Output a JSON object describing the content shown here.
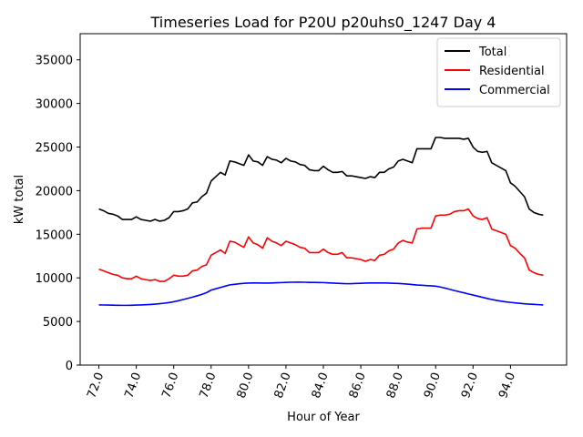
{
  "chart_data": {
    "type": "line",
    "title": "Timeseries Load for P20U p20uhs0_1247  Day 4",
    "xlabel": "Hour of Year",
    "ylabel": "kW total",
    "xlim": [
      71.0,
      97.0
    ],
    "ylim": [
      0,
      38000
    ],
    "xticks": [
      72,
      74,
      76,
      78,
      80,
      82,
      84,
      86,
      88,
      90,
      92,
      94
    ],
    "xtick_labels": [
      "72.0",
      "74.0",
      "76.0",
      "78.0",
      "80.0",
      "82.0",
      "84.0",
      "86.0",
      "88.0",
      "90.0",
      "92.0",
      "94.0"
    ],
    "yticks": [
      0,
      5000,
      10000,
      15000,
      20000,
      25000,
      30000,
      35000
    ],
    "ytick_labels": [
      "0",
      "5000",
      "10000",
      "15000",
      "20000",
      "25000",
      "30000",
      "35000"
    ],
    "legend_position": "top-right",
    "x": [
      72.0,
      72.25,
      72.5,
      72.75,
      73.0,
      73.25,
      73.5,
      73.75,
      74.0,
      74.25,
      74.5,
      74.75,
      75.0,
      75.25,
      75.5,
      75.75,
      76.0,
      76.25,
      76.5,
      76.75,
      77.0,
      77.25,
      77.5,
      77.75,
      78.0,
      78.25,
      78.5,
      78.75,
      79.0,
      79.25,
      79.5,
      79.75,
      80.0,
      80.25,
      80.5,
      80.75,
      81.0,
      81.25,
      81.5,
      81.75,
      82.0,
      82.25,
      82.5,
      82.75,
      83.0,
      83.25,
      83.5,
      83.75,
      84.0,
      84.25,
      84.5,
      84.75,
      85.0,
      85.25,
      85.5,
      85.75,
      86.0,
      86.25,
      86.5,
      86.75,
      87.0,
      87.25,
      87.5,
      87.75,
      88.0,
      88.25,
      88.5,
      88.75,
      89.0,
      89.25,
      89.5,
      89.75,
      90.0,
      90.25,
      90.5,
      90.75,
      91.0,
      91.25,
      91.5,
      91.75,
      92.0,
      92.25,
      92.5,
      92.75,
      93.0,
      93.25,
      93.5,
      93.75,
      94.0,
      94.25,
      94.5,
      94.75,
      95.0,
      95.25,
      95.5,
      95.75
    ],
    "series": [
      {
        "name": "Total",
        "color": "#000000",
        "values": [
          17900,
          17700,
          17400,
          17300,
          17100,
          16700,
          16700,
          16700,
          17000,
          16700,
          16600,
          16500,
          16700,
          16500,
          16600,
          16900,
          17600,
          17600,
          17700,
          17900,
          18600,
          18700,
          19300,
          19700,
          21100,
          21600,
          22100,
          21800,
          23400,
          23300,
          23100,
          22900,
          24100,
          23400,
          23300,
          22900,
          23900,
          23600,
          23500,
          23200,
          23700,
          23400,
          23300,
          23000,
          22900,
          22400,
          22300,
          22300,
          22800,
          22400,
          22100,
          22100,
          22200,
          21700,
          21700,
          21600,
          21500,
          21400,
          21600,
          21500,
          22100,
          22100,
          22500,
          22700,
          23400,
          23600,
          23400,
          23200,
          24800,
          24800,
          24800,
          24800,
          26100,
          26100,
          26000,
          26000,
          26000,
          26000,
          25900,
          26000,
          25000,
          24500,
          24400,
          24500,
          23200,
          22900,
          22600,
          22300,
          20900,
          20500,
          19900,
          19300,
          17900,
          17500,
          17300,
          17200
        ]
      },
      {
        "name": "Residential",
        "color": "#ff0000",
        "values": [
          11000,
          10800,
          10600,
          10400,
          10300,
          10000,
          9900,
          9900,
          10200,
          9900,
          9800,
          9700,
          9800,
          9600,
          9600,
          9900,
          10300,
          10200,
          10200,
          10300,
          10800,
          10900,
          11300,
          11500,
          12600,
          12900,
          13200,
          12800,
          14200,
          14100,
          13800,
          13500,
          14700,
          14000,
          13800,
          13400,
          14600,
          14200,
          14000,
          13700,
          14200,
          14000,
          13800,
          13500,
          13400,
          12900,
          12900,
          12900,
          13300,
          12900,
          12700,
          12700,
          12900,
          12300,
          12300,
          12200,
          12100,
          11900,
          12100,
          12000,
          12600,
          12700,
          13100,
          13300,
          14000,
          14300,
          14100,
          14000,
          15600,
          15700,
          15700,
          15700,
          17100,
          17200,
          17200,
          17300,
          17600,
          17700,
          17700,
          17900,
          17100,
          16800,
          16700,
          16900,
          15600,
          15400,
          15200,
          15000,
          13700,
          13400,
          12800,
          12300,
          10900,
          10600,
          10400,
          10300
        ]
      },
      {
        "name": "Commercial",
        "color": "#0000ff",
        "values": [
          6900,
          6890,
          6880,
          6870,
          6860,
          6850,
          6850,
          6860,
          6880,
          6900,
          6920,
          6950,
          6990,
          7040,
          7100,
          7170,
          7260,
          7380,
          7520,
          7650,
          7790,
          7940,
          8100,
          8300,
          8600,
          8750,
          8900,
          9050,
          9200,
          9260,
          9320,
          9380,
          9400,
          9410,
          9420,
          9400,
          9400,
          9420,
          9440,
          9460,
          9480,
          9500,
          9510,
          9510,
          9500,
          9480,
          9480,
          9470,
          9460,
          9430,
          9400,
          9380,
          9350,
          9330,
          9340,
          9360,
          9380,
          9400,
          9410,
          9420,
          9420,
          9420,
          9400,
          9380,
          9360,
          9320,
          9280,
          9230,
          9180,
          9150,
          9120,
          9090,
          9050,
          8950,
          8820,
          8690,
          8550,
          8420,
          8290,
          8160,
          8030,
          7900,
          7770,
          7640,
          7520,
          7420,
          7330,
          7250,
          7190,
          7130,
          7080,
          7030,
          6990,
          6960,
          6930,
          6900
        ]
      }
    ]
  }
}
